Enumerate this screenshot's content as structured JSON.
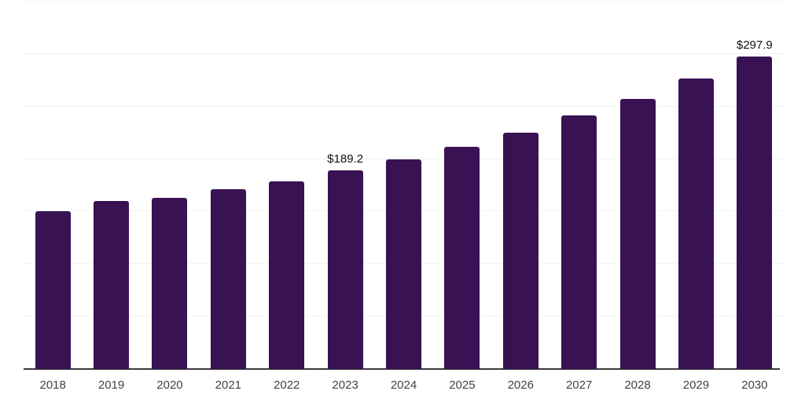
{
  "chart_data": {
    "type": "bar",
    "title": "",
    "categories": [
      "2018",
      "2019",
      "2020",
      "2021",
      "2022",
      "2023",
      "2024",
      "2025",
      "2026",
      "2027",
      "2028",
      "2029",
      "2030"
    ],
    "values": [
      150.4,
      159.8,
      163.1,
      171.0,
      179.1,
      189.2,
      199.8,
      211.5,
      225.0,
      241.3,
      257.0,
      276.4,
      297.9
    ],
    "bar_labels": [
      "",
      "",
      "",
      "",
      "",
      "$189.2",
      "",
      "",
      "",
      "",
      "",
      "",
      "$297.9"
    ],
    "xlabel": "",
    "ylabel": "",
    "ylim": [
      0,
      350
    ],
    "gridline_step": 50,
    "grid": "on",
    "legend": "none",
    "y_tick_labels_visible": false,
    "colors": {
      "bar": "#381253",
      "axis_line": "#3a3a3a",
      "gridline": "#f2f2f2",
      "value_label": "#111111",
      "tick_label": "#424242",
      "background": "#ffffff"
    }
  }
}
